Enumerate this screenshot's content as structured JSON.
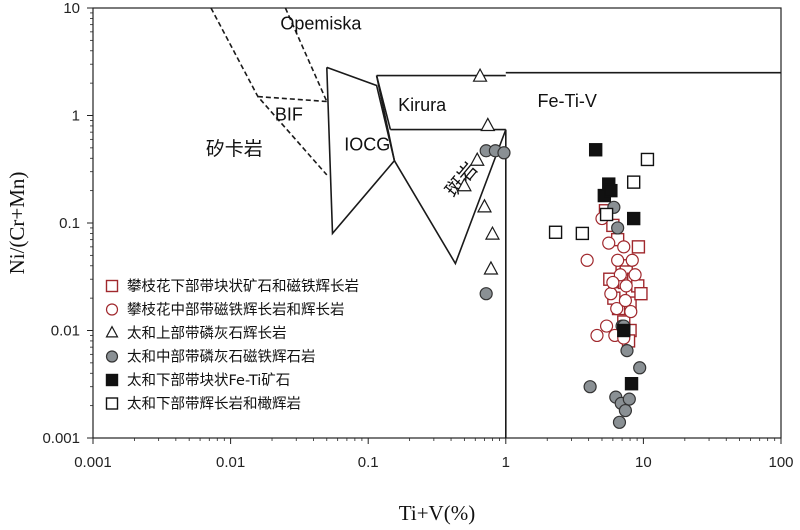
{
  "chart_data": {
    "type": "scatter",
    "xlabel": "Ti+V(%)",
    "ylabel": "Ni/(Cr+Mn)",
    "xscale": "log",
    "yscale": "log",
    "xlim": [
      0.001,
      100
    ],
    "ylim": [
      0.001,
      10
    ],
    "xticks": [
      "0.001",
      "0.01",
      "0.1",
      "1",
      "10",
      "100"
    ],
    "yticks": [
      "0.001",
      "0.01",
      "0.1",
      "1",
      "10"
    ],
    "fields": [
      {
        "name": "Opemiska",
        "label": "Opemiska",
        "x": 0.023,
        "y": 6.3,
        "rotate": 0,
        "polylines": [
          {
            "dash": true,
            "points": [
              [
                0.0072,
                10
              ],
              [
                0.0158,
                1.5
              ],
              [
                0.05,
                0.28
              ]
            ]
          },
          {
            "dash": true,
            "points": [
              [
                0.025,
                10
              ],
              [
                0.05,
                1.35
              ]
            ]
          },
          {
            "dash": true,
            "points": [
              [
                0.0158,
                1.5
              ],
              [
                0.05,
                1.35
              ]
            ]
          }
        ]
      },
      {
        "name": "BIF",
        "label": "BIF",
        "x": 0.021,
        "y": 0.9,
        "rotate": 0,
        "polylines": []
      },
      {
        "name": "IOCG",
        "label": "IOCG",
        "x": 0.067,
        "y": 0.47,
        "rotate": 0,
        "polylines": [
          {
            "dash": false,
            "points": [
              [
                0.05,
                2.8
              ],
              [
                0.055,
                0.08
              ],
              [
                0.155,
                0.38
              ],
              [
                0.115,
                1.9
              ],
              [
                0.05,
                2.8
              ]
            ]
          }
        ]
      },
      {
        "name": "Kirura",
        "label": "Kirura",
        "x": 0.165,
        "y": 1.1,
        "rotate": 0,
        "polylines": [
          {
            "dash": false,
            "points": [
              [
                0.115,
                2.35
              ],
              [
                1.0,
                2.35
              ]
            ]
          },
          {
            "dash": false,
            "points": [
              [
                0.145,
                0.74
              ],
              [
                1.0,
                0.74
              ]
            ]
          },
          {
            "dash": false,
            "points": [
              [
                0.115,
                2.35
              ],
              [
                0.145,
                0.74
              ]
            ]
          }
        ]
      },
      {
        "name": "Porphyry",
        "label": "斑岩",
        "x": 0.42,
        "y": 0.17,
        "rotate": -50,
        "polylines": [
          {
            "dash": false,
            "points": [
              [
                0.115,
                2.35
              ],
              [
                0.155,
                0.38
              ],
              [
                0.43,
                0.042
              ],
              [
                1.0,
                0.74
              ],
              [
                1.0,
                0.001
              ]
            ]
          }
        ]
      },
      {
        "name": "Fe-Ti-V",
        "label": "Fe-Ti-V",
        "x": 1.7,
        "y": 1.2,
        "rotate": 0,
        "polylines": [
          {
            "dash": false,
            "points": [
              [
                1.0,
                2.5
              ],
              [
                100,
                2.5
              ]
            ]
          }
        ]
      },
      {
        "name": "Skarn",
        "label": "矽卡岩",
        "x": 0.0066,
        "y": 0.43,
        "rotate": 0,
        "polylines": []
      }
    ],
    "series": [
      {
        "name": "攀枝花下部带块状矿石和磁铁辉长岩",
        "marker": "square-open",
        "color": "#a0282d",
        "points": [
          [
            5.3,
            0.13
          ],
          [
            6.0,
            0.095
          ],
          [
            6.5,
            0.07
          ],
          [
            7.0,
            0.04
          ],
          [
            9.2,
            0.06
          ],
          [
            5.7,
            0.03
          ],
          [
            6.2,
            0.025
          ],
          [
            6.8,
            0.022
          ],
          [
            7.3,
            0.028
          ],
          [
            7.5,
            0.035
          ],
          [
            8.0,
            0.018
          ],
          [
            6.6,
            0.016
          ],
          [
            7.2,
            0.012
          ],
          [
            8.5,
            0.03
          ],
          [
            9.1,
            0.026
          ],
          [
            9.6,
            0.022
          ],
          [
            8.0,
            0.01
          ],
          [
            7.8,
            0.008
          ],
          [
            6.1,
            0.02
          ]
        ]
      },
      {
        "name": "攀枝花中部带磁铁辉长岩和辉长岩",
        "marker": "circle-open",
        "color": "#a0282d",
        "points": [
          [
            3.9,
            0.045
          ],
          [
            5.0,
            0.11
          ],
          [
            5.6,
            0.065
          ],
          [
            6.5,
            0.045
          ],
          [
            7.2,
            0.06
          ],
          [
            6.8,
            0.033
          ],
          [
            7.5,
            0.026
          ],
          [
            8.3,
            0.045
          ],
          [
            5.8,
            0.022
          ],
          [
            6.4,
            0.016
          ],
          [
            7.4,
            0.019
          ],
          [
            8.1,
            0.015
          ],
          [
            4.6,
            0.009
          ],
          [
            5.4,
            0.011
          ],
          [
            6.2,
            0.009
          ],
          [
            7.2,
            0.0085
          ],
          [
            6.0,
            0.028
          ],
          [
            8.7,
            0.033
          ]
        ]
      },
      {
        "name": "太和上部带磷灰石辉长岩",
        "marker": "triangle-open",
        "color": "#1a1a1a",
        "points": [
          [
            0.65,
            2.3
          ],
          [
            0.74,
            0.8
          ],
          [
            0.62,
            0.38
          ],
          [
            0.5,
            0.22
          ],
          [
            0.7,
            0.14
          ],
          [
            0.8,
            0.078
          ],
          [
            0.78,
            0.037
          ]
        ]
      },
      {
        "name": "太和中部带磷灰石磁铁辉石岩",
        "marker": "circle-filled",
        "color": "#8a9094",
        "points": [
          [
            0.72,
            0.47
          ],
          [
            0.84,
            0.47
          ],
          [
            0.97,
            0.45
          ],
          [
            0.72,
            0.022
          ],
          [
            6.1,
            0.14
          ],
          [
            6.5,
            0.09
          ],
          [
            7.0,
            0.011
          ],
          [
            7.6,
            0.0065
          ],
          [
            9.4,
            0.0045
          ],
          [
            4.1,
            0.003
          ],
          [
            6.3,
            0.0024
          ],
          [
            6.9,
            0.0021
          ],
          [
            7.4,
            0.0018
          ],
          [
            6.7,
            0.0014
          ],
          [
            7.9,
            0.0023
          ],
          [
            7.2,
            0.011
          ]
        ]
      },
      {
        "name": "太和下部带块状Fe-Ti矿石",
        "marker": "square-filled",
        "color": "#111111",
        "points": [
          [
            4.5,
            0.48
          ],
          [
            5.6,
            0.23
          ],
          [
            5.2,
            0.18
          ],
          [
            5.8,
            0.2
          ],
          [
            8.5,
            0.11
          ],
          [
            7.2,
            0.01
          ],
          [
            8.2,
            0.0032
          ]
        ]
      },
      {
        "name": "太和下部带辉长岩和橄辉岩",
        "marker": "square-open",
        "color": "#111111",
        "points": [
          [
            10.7,
            0.39
          ],
          [
            8.5,
            0.24
          ],
          [
            2.3,
            0.082
          ],
          [
            3.6,
            0.08
          ],
          [
            5.4,
            0.12
          ]
        ]
      }
    ]
  }
}
